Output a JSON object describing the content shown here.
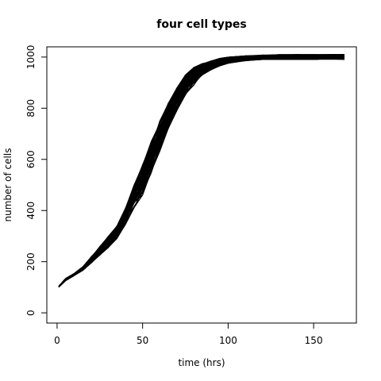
{
  "chart_data": {
    "type": "line",
    "title": "four cell types",
    "xlabel": "time (hrs)",
    "ylabel": "number of cells",
    "xlim": [
      -6,
      175
    ],
    "ylim": [
      -40,
      1040
    ],
    "xticks": [
      0,
      50,
      100,
      150
    ],
    "yticks": [
      0,
      200,
      400,
      600,
      800,
      1000
    ],
    "grid": false,
    "legend": "none",
    "line_color": "#000000",
    "band": {
      "x": [
        1,
        5,
        10,
        15,
        20,
        25,
        30,
        35,
        40,
        45,
        50,
        55,
        60,
        65,
        70,
        75,
        80,
        85,
        90,
        95,
        100,
        110,
        120,
        130,
        140,
        150,
        160,
        168
      ],
      "y_low": [
        100,
        125,
        145,
        165,
        195,
        225,
        255,
        290,
        345,
        410,
        460,
        540,
        630,
        720,
        790,
        850,
        890,
        930,
        950,
        965,
        975,
        985,
        990,
        990,
        990,
        990,
        990,
        990
      ],
      "y_high": [
        105,
        135,
        155,
        180,
        220,
        260,
        300,
        340,
        410,
        500,
        580,
        670,
        750,
        820,
        880,
        930,
        960,
        975,
        985,
        995,
        1000,
        1005,
        1008,
        1010,
        1010,
        1010,
        1010,
        1010
      ]
    },
    "series_count": 100
  }
}
